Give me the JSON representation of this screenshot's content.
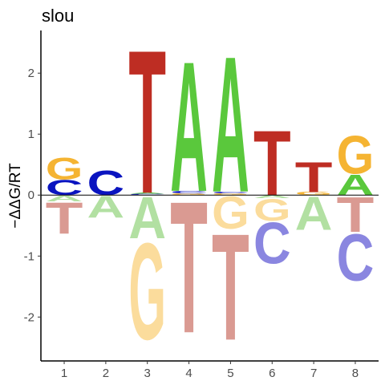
{
  "chart_data": {
    "type": "logo",
    "title": "slou",
    "y_label": "−ΔΔG/RT",
    "xlim": [
      0.44,
      8.56
    ],
    "xticks": [
      1,
      2,
      3,
      4,
      5,
      6,
      7,
      8
    ],
    "ylim": [
      -2.72,
      2.7
    ],
    "yticks": [
      -2,
      -1,
      0,
      1,
      2
    ],
    "colors": {
      "A": "#5ac83c",
      "C": "#0a14c0",
      "G": "#f5b432",
      "T": "#be2d23"
    },
    "negative_colors": {
      "A": "#b2e0a2",
      "C": "#8a86e0",
      "G": "#fbdc9c",
      "T": "#da9a92"
    },
    "stacks": [
      [
        {
          "letter": "C",
          "value": 0.26
        },
        {
          "letter": "G",
          "value": 0.37
        },
        {
          "letter": "A",
          "value": -0.1
        },
        {
          "letter": "T",
          "value": -0.53
        }
      ],
      [
        {
          "letter": "C",
          "value": 0.42
        },
        {
          "letter": "A",
          "value": -0.37
        }
      ],
      [
        {
          "letter": "C",
          "value": 0.02
        },
        {
          "letter": "A",
          "value": 0.02
        },
        {
          "letter": "T",
          "value": 2.45
        },
        {
          "letter": "A",
          "value": -0.71
        },
        {
          "letter": "G",
          "value": -1.65
        }
      ],
      [
        {
          "letter": "G",
          "value": 0.03
        },
        {
          "letter": "C",
          "value": 0.04
        },
        {
          "letter": "A",
          "value": 2.22
        },
        {
          "letter": "T",
          "value": -2.25
        }
      ],
      [
        {
          "letter": "G",
          "value": 0.03
        },
        {
          "letter": "C",
          "value": 0.03
        },
        {
          "letter": "A",
          "value": 2.32
        },
        {
          "letter": "G",
          "value": -0.55
        },
        {
          "letter": "T",
          "value": -1.82
        }
      ],
      [
        {
          "letter": "T",
          "value": 1.1
        },
        {
          "letter": "A",
          "value": -0.05
        },
        {
          "letter": "G",
          "value": -0.37
        },
        {
          "letter": "C",
          "value": -0.7
        }
      ],
      [
        {
          "letter": "G",
          "value": 0.05
        },
        {
          "letter": "T",
          "value": 0.52
        },
        {
          "letter": "A",
          "value": -0.57
        }
      ],
      [
        {
          "letter": "A",
          "value": 0.35
        },
        {
          "letter": "G",
          "value": 0.65
        },
        {
          "letter": "T",
          "value": -0.6
        },
        {
          "letter": "C",
          "value": -0.8
        }
      ]
    ]
  }
}
